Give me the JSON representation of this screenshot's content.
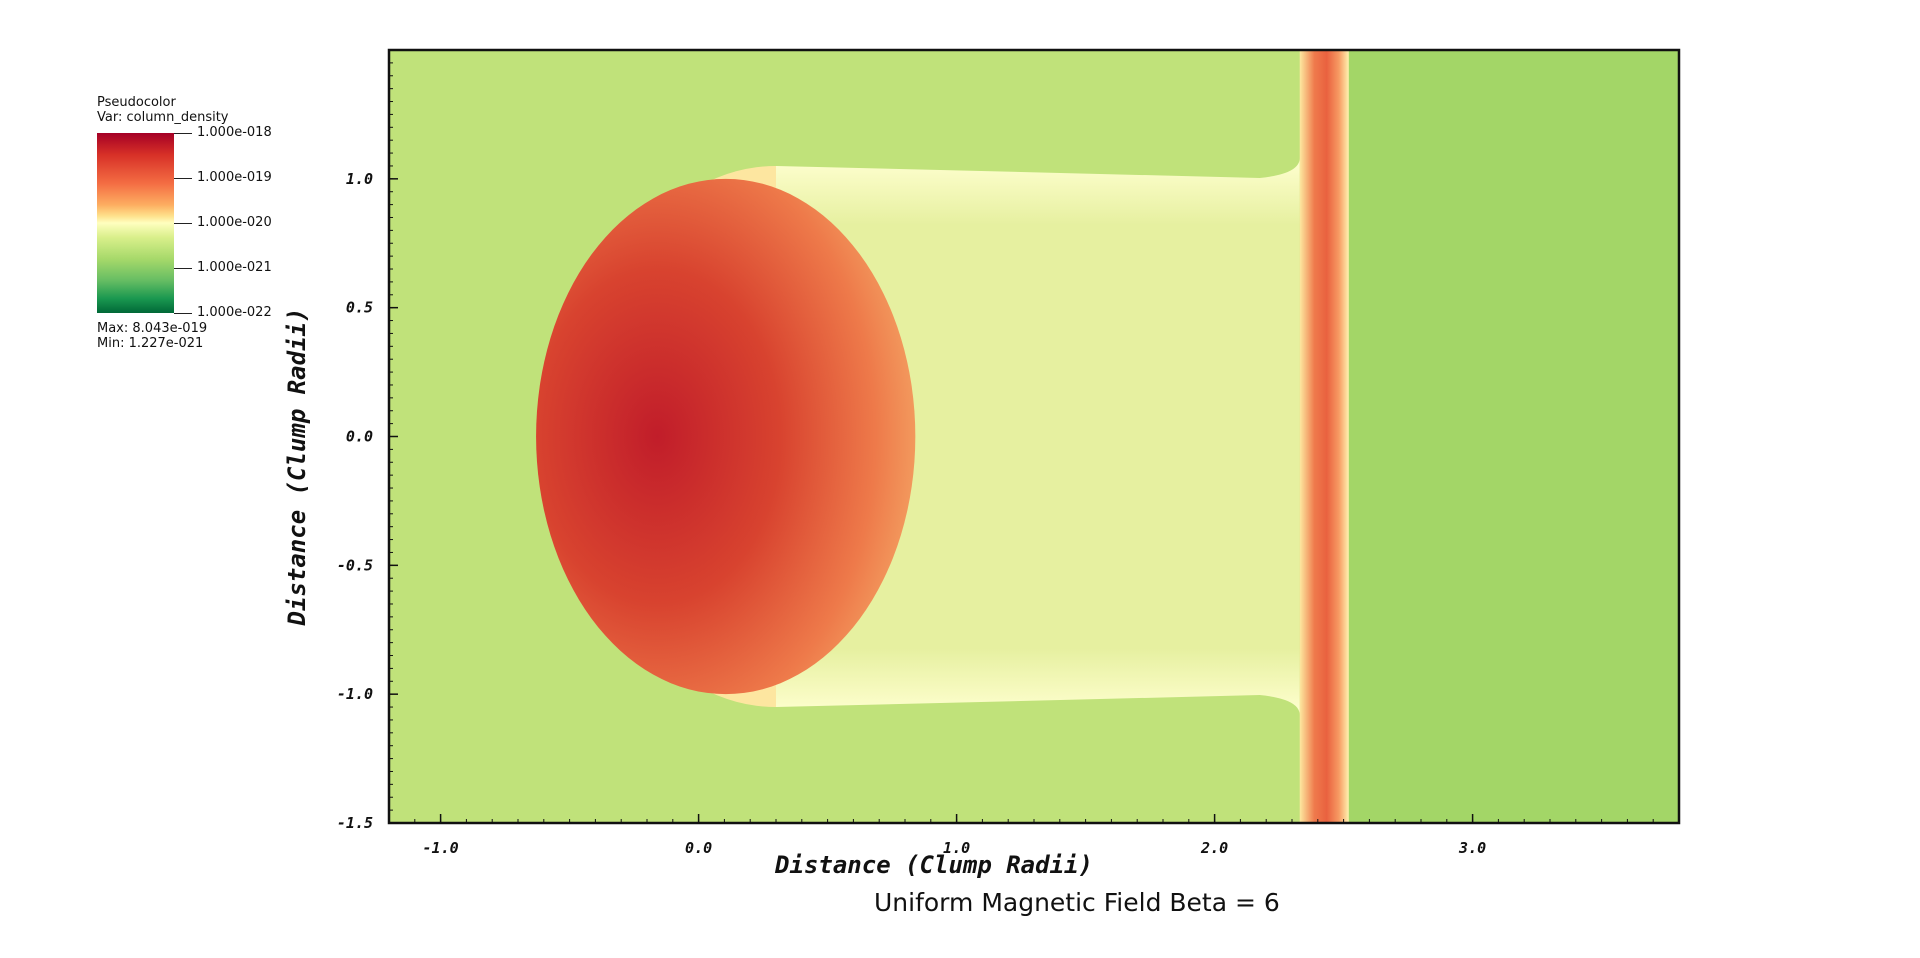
{
  "chart_data": {
    "type": "heatmap",
    "title": "Uniform Magnetic Field Beta = 6",
    "xlabel": "Distance (Clump Radii)",
    "ylabel": "Distance (Clump Radii)",
    "xlim": [
      -1.2,
      3.8
    ],
    "ylim": [
      -1.5,
      1.5
    ],
    "x_ticks": [
      -1.0,
      0.0,
      1.0,
      2.0,
      3.0
    ],
    "x_tick_labels": [
      "-1.0",
      "0.0",
      "1.0",
      "2.0",
      "3.0"
    ],
    "y_ticks": [
      1.0,
      0.5,
      0.0,
      -0.5,
      -1.0,
      -1.5
    ],
    "y_tick_labels": [
      "1.0",
      "0.5",
      "0.0",
      "-0.5",
      "-1.0",
      "-1.5"
    ],
    "colorbar": {
      "plot_type": "Pseudocolor",
      "variable": "Var: column_density",
      "scale": "log",
      "labels": [
        "1.000e-018",
        "1.000e-019",
        "1.000e-020",
        "1.000e-021",
        "1.000e-022"
      ],
      "max_text": "Max:  8.043e-019",
      "min_text": "Min:  1.227e-021",
      "colors": [
        "#a50026",
        "#d73027",
        "#f46d43",
        "#fdae61",
        "#fee08b",
        "#ffffbf",
        "#d9ef8b",
        "#a6d96a",
        "#66bd63",
        "#1a9850",
        "#006837"
      ]
    },
    "features": {
      "background_color": "#c0e27a",
      "downstream_color": "#a3d667",
      "tail_color": "#e6f0a0",
      "clump_core_color": "#c11d2a",
      "clump_edge_color": "#f4a464",
      "clump_center_x": -0.05,
      "clump_radius": 0.55,
      "shock_x": 2.42,
      "shock_color": "#ef7a4c"
    }
  }
}
